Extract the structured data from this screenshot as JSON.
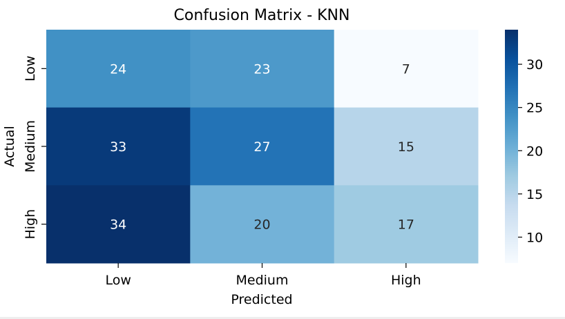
{
  "chart_data": {
    "type": "heatmap",
    "title": "Confusion Matrix - KNN",
    "xlabel": "Predicted",
    "ylabel": "Actual",
    "x_categories": [
      "Low",
      "Medium",
      "High"
    ],
    "y_categories": [
      "Low",
      "Medium",
      "High"
    ],
    "values": [
      [
        24,
        23,
        7
      ],
      [
        33,
        27,
        15
      ],
      [
        34,
        20,
        17
      ]
    ],
    "colormap": "Blues",
    "vmin": 7,
    "vmax": 34,
    "colorbar_ticks": [
      10,
      15,
      20,
      25,
      30
    ],
    "annotations": true
  }
}
